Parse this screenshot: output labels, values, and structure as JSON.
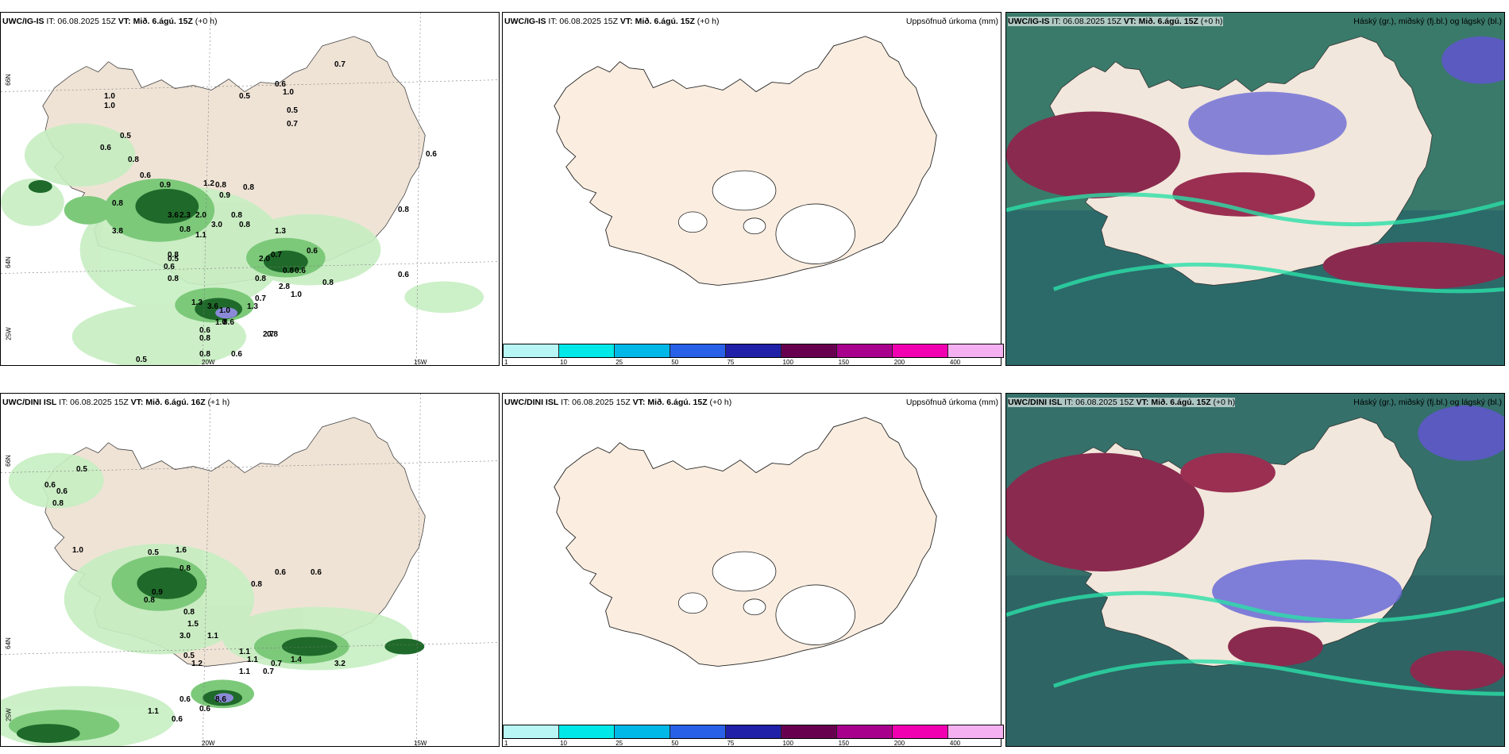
{
  "panels": {
    "p1": {
      "model": "UWC/IG-IS",
      "it": "IT: 06.08.2025 15Z",
      "vt": "VT: Mið. 6.ágú. 15Z",
      "lead": "(+0 h)"
    },
    "p2": {
      "model": "UWC/IG-IS",
      "it": "IT: 06.08.2025 15Z",
      "vt": "VT: Mið. 6.ágú. 15Z",
      "lead": "(+0 h)",
      "right": "Uppsöfnuð úrkoma (mm)"
    },
    "p3": {
      "model": "UWC/IG-IS",
      "it": "IT: 06.08.2025 15Z",
      "vt": "VT: Mið. 6.ágú. 15Z",
      "lead": "(+0 h)",
      "right": "Háský (gr.), miðský (fj.bl.) og lágský (bl.)"
    },
    "p4": {
      "model": "UWC/DINI ISL",
      "it": "IT: 06.08.2025 15Z",
      "vt": "VT: Mið. 6.ágú. 16Z",
      "lead": "(+1 h)"
    },
    "p5": {
      "model": "UWC/DINI ISL",
      "it": "IT: 06.08.2025 15Z",
      "vt": "VT: Mið. 6.ágú. 15Z",
      "lead": "(+0 h)",
      "right": "Uppsöfnuð úrkoma (mm)"
    },
    "p6": {
      "model": "UWC/DINI ISL",
      "it": "IT: 06.08.2025 15Z",
      "vt": "VT: Mið. 6.ágú. 15Z",
      "lead": "(+0 h)",
      "right": "Háský (gr.), miðský (fj.bl.) og lágský (bl.)"
    }
  },
  "axes": {
    "lat1": "66N",
    "lat2": "64N",
    "lon1": "25W",
    "lon2": "20W",
    "lon3": "15W"
  },
  "legend": {
    "ticks": [
      "1",
      "10",
      "25",
      "50",
      "75",
      "100",
      "150",
      "200",
      "400"
    ],
    "colors": [
      "#b8f6f6",
      "#00e8e8",
      "#00b8e8",
      "#2860e8",
      "#2020a8",
      "#680050",
      "#a8008c",
      "#f000b0",
      "#f4b0f0"
    ]
  },
  "labels_top": [
    "0.7",
    "0.6",
    "1.0",
    "1.0",
    "0.5",
    "1.0",
    "0.5",
    "0.7",
    "0.5",
    "0.6",
    "0.6",
    "0.8",
    "0.8",
    "0.6",
    "0.9",
    "0.8",
    "0.9",
    "0.8",
    "0.8",
    "1.2",
    "3.6",
    "2.3",
    "2.0",
    "0.8",
    "3.0",
    "0.8",
    "0.8",
    "3.8",
    "1.3",
    "1.1",
    "0.8",
    "0.5",
    "2.0",
    "0.6",
    "0.7",
    "0.6",
    "0.8",
    "0.8",
    "0.8",
    "0.6",
    "1.0",
    "1.0",
    "0.8",
    "2.7",
    "1.3",
    "0.7",
    "1.0",
    "2.8",
    "0.8",
    "0.6",
    "8.6",
    "0.8",
    "0.8",
    "0.6",
    "0.5",
    "3.6",
    "1.3",
    "0.6"
  ],
  "labels_bottom": [
    "0.5",
    "0.6",
    "0.6",
    "0.8",
    "1.0",
    "0.5",
    "1.6",
    "0.8",
    "0.8",
    "0.9",
    "0.8",
    "0.6",
    "0.6",
    "0.8",
    "1.5",
    "3.0",
    "1.1",
    "0.5",
    "1.1",
    "1.2",
    "0.7",
    "1.1",
    "1.1",
    "0.6",
    "8.6",
    "0.6",
    "1.1",
    "0.6",
    "0.7",
    "1.4",
    "3.2"
  ]
}
